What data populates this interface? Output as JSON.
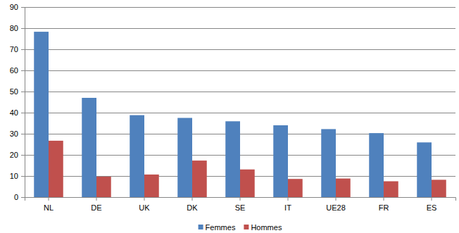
{
  "chart_data": {
    "type": "bar",
    "categories": [
      "NL",
      "DE",
      "UK",
      "DK",
      "SE",
      "IT",
      "UE28",
      "FR",
      "ES"
    ],
    "series": [
      {
        "name": "Femmes",
        "color": "#4f81bd",
        "values": [
          78.3,
          47,
          38.8,
          37.5,
          35.9,
          34,
          32.2,
          30.3,
          25.9
        ]
      },
      {
        "name": "Hommes",
        "color": "#c0504d",
        "values": [
          26.7,
          9.7,
          10.7,
          17.3,
          13.1,
          8.6,
          8.8,
          7.5,
          8.2
        ]
      }
    ],
    "ylim": [
      0,
      90
    ],
    "yticks": [
      0,
      10,
      20,
      30,
      40,
      50,
      60,
      70,
      80,
      90
    ],
    "grid": true,
    "legend": "bottom"
  }
}
